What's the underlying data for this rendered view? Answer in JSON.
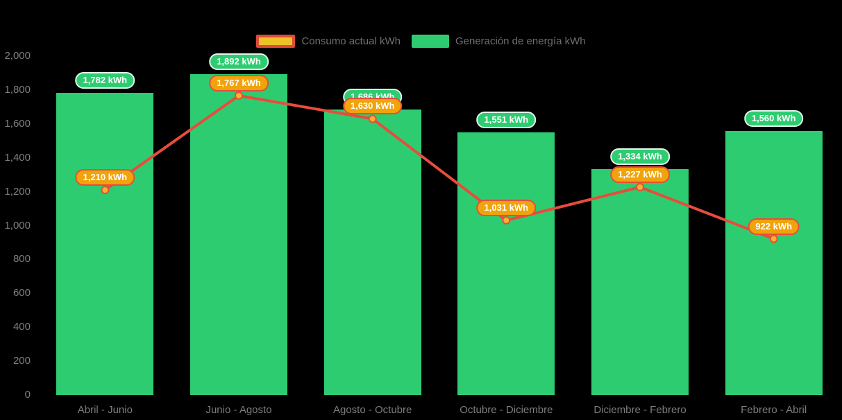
{
  "legend": [
    {
      "label": "Consumo actual kWh"
    },
    {
      "label": "Generación de energía kWh"
    }
  ],
  "chart_data": {
    "type": "bar+line",
    "title": "",
    "xlabel": "",
    "ylabel": "",
    "categories": [
      "Abril - Junio",
      "Junio - Agosto",
      "Agosto - Octubre",
      "Octubre - Diciembre",
      "Diciembre - Febrero",
      "Febrero - Abril"
    ],
    "series": [
      {
        "name": "Generación de energía kWh",
        "type": "bar",
        "color": "#2ecc71",
        "values": [
          1782,
          1892,
          1686,
          1551,
          1334,
          1560
        ],
        "labels": [
          "1,782 kWh",
          "1,892 kWh",
          "1.686 kWh",
          "1,551 kWh",
          "1,334 kWh",
          "1,560 kWh"
        ]
      },
      {
        "name": "Consumo actual kWh",
        "type": "line",
        "color": "#e74c3c",
        "marker_color": "#f7b32b",
        "values": [
          1210,
          1767,
          1630,
          1031,
          1227,
          922
        ],
        "labels": [
          "1,210 kWh",
          "1,767 kWh",
          "1,630 kWh",
          "1,031 kWh",
          "1,227 kWh",
          "922 kWh"
        ]
      }
    ],
    "ylim": [
      0,
      2000
    ],
    "ytick_step": 200,
    "ytick_labels": [
      "0",
      "200",
      "400",
      "600",
      "800",
      "1,000",
      "1,200",
      "1,400",
      "1,600",
      "1,800",
      "2,000"
    ],
    "grid": false,
    "legend_position": "top-center",
    "background": "#000000"
  },
  "colors": {
    "bar": "#2ecc71",
    "line": "#e74c3c",
    "marker": "#f7b32b",
    "badge_line_bg": "#f0a30a",
    "badge_line_border": "#e74c3c",
    "badge_bar_border": "#e2f6ec",
    "legend_swatch_fill": "#ecc227",
    "legend_swatch_border": "#dd4b3a",
    "axis_text": "#7f7f7f",
    "background": "#000000"
  }
}
